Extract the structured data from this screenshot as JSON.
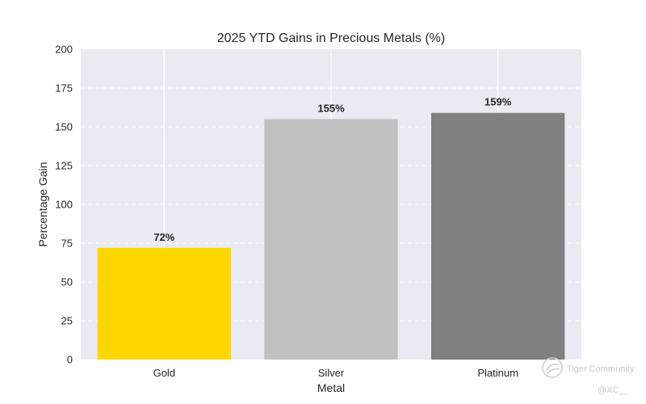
{
  "chart_data": {
    "type": "bar",
    "title": "2025 YTD Gains in Precious Metals (%)",
    "xlabel": "Metal",
    "ylabel": "Percentage Gain",
    "categories": [
      "Gold",
      "Silver",
      "Platinum"
    ],
    "values": [
      72,
      155,
      159
    ],
    "data_labels": [
      "72%",
      "155%",
      "159%"
    ],
    "ylim": [
      0,
      200
    ],
    "yticks": [
      0,
      25,
      50,
      75,
      100,
      125,
      150,
      175,
      200
    ],
    "colors": [
      "#FFD700",
      "#C0C0C0",
      "#808080"
    ],
    "background_color": "#EAEAF2",
    "grid": true
  },
  "watermark": {
    "brand": "Tiger Community",
    "handle": "@XC__",
    "icon": "tiger-community-logo-icon"
  }
}
